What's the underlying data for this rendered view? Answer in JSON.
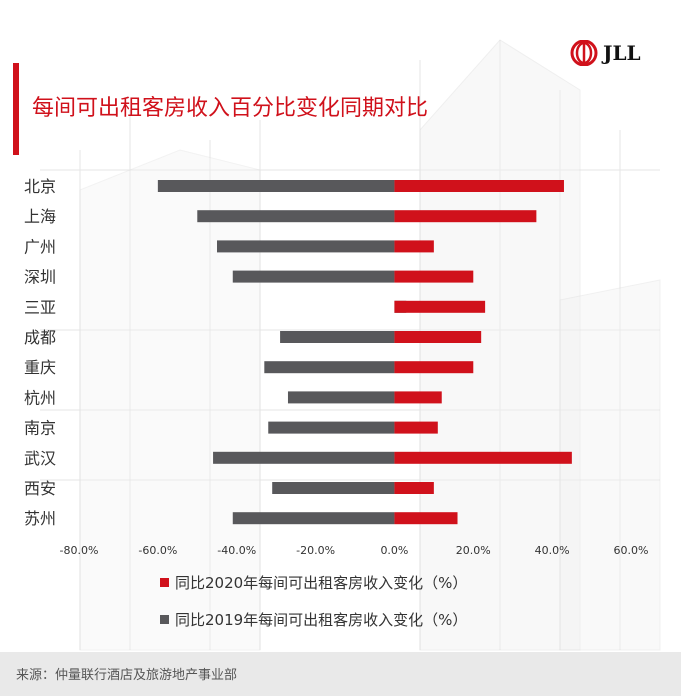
{
  "title": "每间可出租客房收入百分比变化同期对比",
  "logo": {
    "text": "JLL",
    "icon": "jll-swirl-icon"
  },
  "colors": {
    "accent": "#d0111b",
    "series2020": "#d0111b",
    "series2019": "#58585b",
    "footer_bg": "#e9e9e9"
  },
  "legend": [
    {
      "label": "同比2020年每间可出租客房收入变化（%）",
      "color": "#d0111b"
    },
    {
      "label": "同比2019年每间可出租客房收入变化（%）",
      "color": "#58585b"
    }
  ],
  "source": "来源：仲量联行酒店及旅游地产事业部",
  "chart_data": {
    "type": "bar",
    "orientation": "horizontal",
    "categories": [
      "北京",
      "上海",
      "广州",
      "深圳",
      "三亚",
      "成都",
      "重庆",
      "杭州",
      "南京",
      "武汉",
      "西安",
      "苏州"
    ],
    "series": [
      {
        "name": "同比2020年每间可出租客房收入变化（%）",
        "color": "#d0111b",
        "values": [
          43,
          36,
          10,
          20,
          23,
          22,
          20,
          12,
          11,
          45,
          10,
          16
        ]
      },
      {
        "name": "同比2019年每间可出租客房收入变化（%）",
        "color": "#58585b",
        "values": [
          -60,
          -50,
          -45,
          -41,
          3,
          -29,
          -33,
          -27,
          -32,
          -46,
          -31,
          -41
        ]
      }
    ],
    "xticks": [
      "-80.0%",
      "-60.0%",
      "-40.0%",
      "-20.0%",
      "0.0%",
      "20.0%",
      "40.0%",
      "60.0%"
    ],
    "xlim": [
      -80,
      60
    ],
    "grid": false,
    "legend_position": "bottom"
  }
}
